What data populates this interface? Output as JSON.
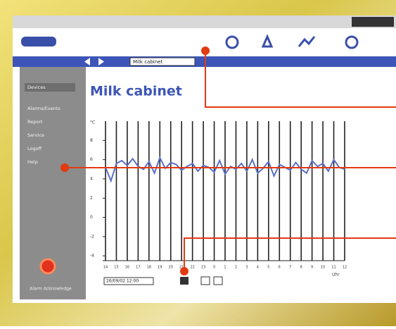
{
  "window": {
    "device_select": "Milk cabinet"
  },
  "sidebar": {
    "items": [
      "Devices",
      "Alarms/Events",
      "Report",
      "Service",
      "Logoff",
      "Help"
    ],
    "alarm_button": "Alarm Acknowledge"
  },
  "footer": {
    "date_field": "26/09/02 12:00"
  },
  "chart_data": {
    "type": "line",
    "title": "Milk cabinet",
    "y_label": "°C",
    "x_label": "Uhr",
    "color": "#5a6fc8",
    "grid": true,
    "x": [
      0,
      0.5,
      1,
      1.5,
      2,
      2.5,
      3,
      3.5,
      4,
      4.5,
      5,
      5.5,
      6,
      6.5,
      7,
      7.5,
      8,
      8.5,
      9,
      9.5,
      10,
      10.5,
      11,
      11.5,
      12,
      12.5,
      13,
      13.5,
      14,
      14.5,
      15,
      15.5,
      16,
      16.5,
      17,
      17.5,
      18,
      18.5,
      19,
      19.5,
      20,
      20.5,
      21,
      21.5,
      22
    ],
    "values": [
      5.2,
      3.8,
      5.6,
      5.9,
      5.4,
      6.1,
      5.3,
      5.0,
      5.8,
      4.6,
      6.2,
      5.1,
      5.7,
      5.5,
      4.9,
      5.3,
      5.6,
      4.8,
      5.4,
      5.2,
      4.7,
      5.9,
      4.5,
      5.3,
      5.0,
      5.6,
      4.8,
      6.0,
      4.6,
      5.1,
      5.8,
      4.3,
      5.5,
      5.2,
      4.9,
      5.7,
      5.0,
      4.6,
      5.9,
      5.3,
      5.6,
      4.8,
      6.0,
      5.2,
      5.0
    ],
    "xlim": [
      0,
      22
    ],
    "xticks": [
      {
        "value": 0,
        "label": "14"
      },
      {
        "value": 1,
        "label": "15"
      },
      {
        "value": 2,
        "label": "16"
      },
      {
        "value": 3,
        "label": "17"
      },
      {
        "value": 4,
        "label": "18"
      },
      {
        "value": 5,
        "label": "19"
      },
      {
        "value": 6,
        "label": "20"
      },
      {
        "value": 7,
        "label": "21"
      },
      {
        "value": 8,
        "label": "22"
      },
      {
        "value": 9,
        "label": "23"
      },
      {
        "value": 10,
        "label": "0"
      },
      {
        "value": 11,
        "label": "1"
      },
      {
        "value": 12,
        "label": "2"
      },
      {
        "value": 13,
        "label": "3"
      },
      {
        "value": 14,
        "label": "4"
      },
      {
        "value": 15,
        "label": "5"
      },
      {
        "value": 16,
        "label": "6"
      },
      {
        "value": 17,
        "label": "7"
      },
      {
        "value": 18,
        "label": "8"
      },
      {
        "value": 19,
        "label": "9"
      },
      {
        "value": 20,
        "label": "10"
      },
      {
        "value": 21,
        "label": "11"
      },
      {
        "value": 22,
        "label": "12"
      }
    ],
    "ylim": [
      -4.5,
      10
    ],
    "yticks": [
      -4,
      -2,
      0,
      2,
      4,
      6,
      8
    ]
  }
}
